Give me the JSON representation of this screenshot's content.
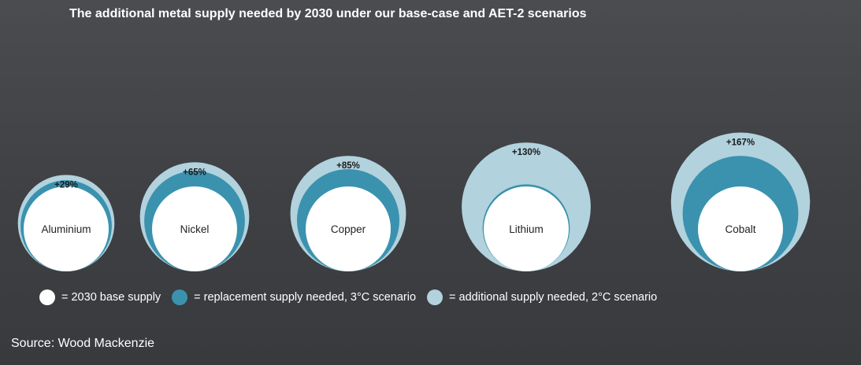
{
  "chart_data": {
    "type": "bubble",
    "title": "The additional metal supply needed by 2030 under our base-case and AET-2 scenarios",
    "categories": [
      "Aluminium",
      "Nickel",
      "Copper",
      "Lithium",
      "Cobalt"
    ],
    "series": [
      {
        "name": "2030 base supply",
        "values": [
          1,
          1,
          1,
          1,
          1
        ]
      },
      {
        "name": "replacement supply needed, 3°C scenario",
        "values": [
          1.15,
          1.4,
          1.45,
          1.05,
          1.85
        ]
      },
      {
        "name": "additional supply needed, 2°C scenario",
        "values": [
          1.29,
          1.65,
          1.85,
          2.3,
          2.67
        ]
      }
    ],
    "labels": [
      "+29%",
      "+65%",
      "+85%",
      "+130%",
      "+167%"
    ],
    "colors": {
      "base": "#ffffff",
      "replacement": "#3a92af",
      "additional": "#b2d2dd"
    }
  },
  "legend": {
    "base": "= 2030 base supply",
    "replacement": "= replacement supply needed, 3°C scenario",
    "additional": "= additional supply needed, 2°C scenario"
  },
  "source": "Source: Wood Mackenzie"
}
